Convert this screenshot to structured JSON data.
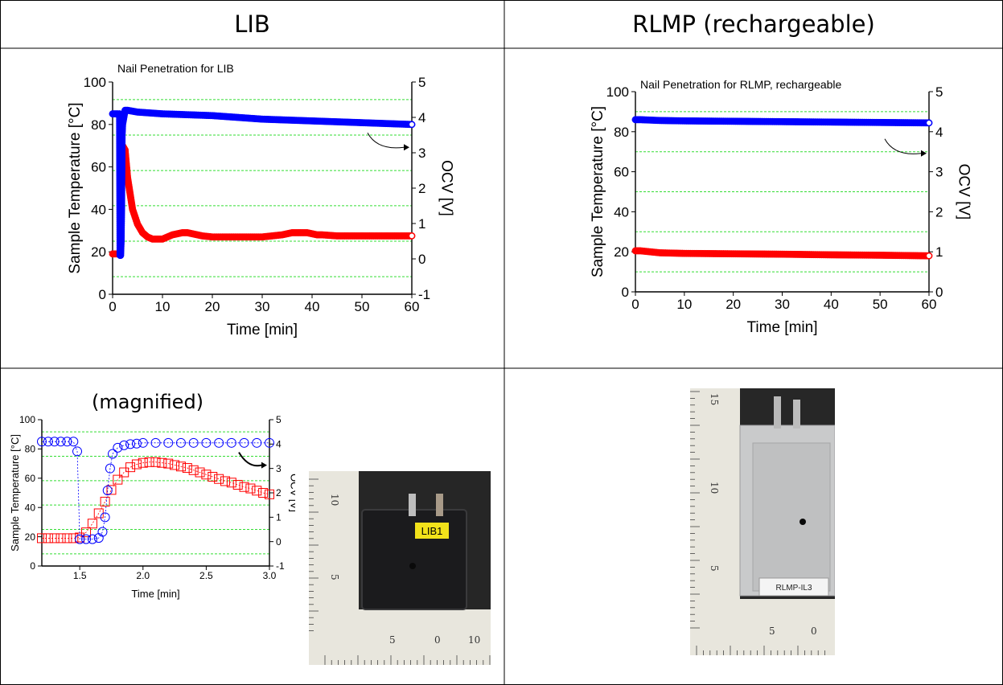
{
  "table": {
    "headers": [
      "LIB",
      "RLMP (rechargeable)"
    ],
    "magnified_label": "(magnified)"
  },
  "colors": {
    "temperature": "#ff0000",
    "ocv": "#0000ff",
    "grid": "#33dd33",
    "table_border": "#000000"
  },
  "chart_data": [
    {
      "type": "scatter",
      "title": "Nail Penetration for LIB",
      "xlabel": "Time [min]",
      "ylabel": "Sample Temperature [°C]",
      "y2label": "OCV [V]",
      "xlim": [
        0,
        60
      ],
      "ylim": [
        0,
        100
      ],
      "y2lim": [
        -1,
        5
      ],
      "xticks": [
        0,
        10,
        20,
        30,
        40,
        50,
        60
      ],
      "yticks": [
        0,
        20,
        40,
        60,
        80,
        100
      ],
      "y2ticks": [
        -1,
        0,
        1,
        2,
        3,
        4,
        5
      ],
      "gridlines_y": [
        8.3,
        25,
        41.7,
        58.3,
        75,
        91.7
      ],
      "series": [
        {
          "axis": "left",
          "color": "#ff0000",
          "style": "thick",
          "x": [
            0,
            1.5,
            1.6,
            1.8,
            2.0,
            2.5,
            3,
            4,
            5,
            6,
            7,
            8,
            9,
            10,
            11,
            12,
            13,
            14,
            15,
            16,
            17,
            18,
            20,
            22,
            25,
            28,
            30,
            32,
            34,
            35,
            36,
            37,
            38,
            39,
            40,
            41,
            42,
            45,
            50,
            55,
            60
          ],
          "y": [
            19,
            19,
            22,
            50,
            70,
            68,
            55,
            40,
            33,
            29,
            27,
            26,
            26,
            26,
            27,
            28,
            28.5,
            29,
            29,
            28.5,
            28,
            27.5,
            27,
            27,
            27,
            27,
            27,
            27.5,
            28,
            28.5,
            29,
            29,
            29,
            29,
            28.5,
            28,
            28,
            27.5,
            27.5,
            27.5,
            27.5
          ]
        },
        {
          "axis": "right",
          "color": "#0000ff",
          "style": "thick",
          "x": [
            0,
            1.0,
            1.4,
            1.5,
            1.6,
            1.7,
            1.8,
            1.9,
            2.0,
            2.5,
            3,
            5,
            10,
            20,
            30,
            40,
            50,
            60
          ],
          "y": [
            4.1,
            4.1,
            4.1,
            0.1,
            0.1,
            0.5,
            1.5,
            3.5,
            3.8,
            4.2,
            4.2,
            4.15,
            4.1,
            4.05,
            3.95,
            3.9,
            3.85,
            3.8
          ]
        }
      ]
    },
    {
      "type": "scatter",
      "title": "Nail Penetration for RLMP, rechargeable",
      "xlabel": "Time [min]",
      "ylabel": "Sample Temperature [°C]",
      "y2label": "OCV [V]",
      "xlim": [
        0,
        60
      ],
      "ylim": [
        0,
        100
      ],
      "y2lim": [
        0,
        5
      ],
      "xticks": [
        0,
        10,
        20,
        30,
        40,
        50,
        60
      ],
      "yticks": [
        0,
        20,
        40,
        60,
        80,
        100
      ],
      "y2ticks": [
        0,
        1,
        2,
        3,
        4,
        5
      ],
      "gridlines_y": [
        10,
        30,
        50,
        70,
        90
      ],
      "series": [
        {
          "axis": "left",
          "color": "#ff0000",
          "style": "thick",
          "x": [
            0,
            1,
            3,
            5,
            10,
            20,
            30,
            40,
            50,
            60
          ],
          "y": [
            20.5,
            20.5,
            20,
            19.5,
            19.2,
            19,
            18.8,
            18.5,
            18.3,
            18
          ]
        },
        {
          "axis": "right",
          "color": "#0000ff",
          "style": "thick",
          "x": [
            0,
            1,
            5,
            10,
            20,
            30,
            40,
            50,
            60
          ],
          "y": [
            4.3,
            4.3,
            4.28,
            4.27,
            4.26,
            4.25,
            4.24,
            4.23,
            4.22
          ]
        }
      ]
    },
    {
      "type": "scatter",
      "title": "",
      "xlabel": "Time [min]",
      "ylabel": "Sample Temperature [°C]",
      "y2label": "OCV [V]",
      "xlim": [
        1.2,
        3.0
      ],
      "ylim": [
        0,
        100
      ],
      "y2lim": [
        -1,
        5
      ],
      "xticks": [
        1.5,
        2.0,
        2.5,
        3.0
      ],
      "xticklabels": [
        "1.5",
        "2.0",
        "2.5",
        "3.0"
      ],
      "yticks": [
        0,
        20,
        40,
        60,
        80,
        100
      ],
      "y2ticks": [
        -1,
        0,
        1,
        2,
        3,
        4,
        5
      ],
      "gridlines_y": [
        8.3,
        25,
        41.7,
        58.3,
        75,
        91.7
      ],
      "series": [
        {
          "axis": "left",
          "color": "#ff0000",
          "style": "open-square",
          "x": [
            1.2,
            1.25,
            1.3,
            1.35,
            1.4,
            1.45,
            1.5,
            1.55,
            1.6,
            1.65,
            1.7,
            1.75,
            1.8,
            1.85,
            1.9,
            1.95,
            2.0,
            2.05,
            2.1,
            2.15,
            2.2,
            2.25,
            2.3,
            2.35,
            2.4,
            2.45,
            2.5,
            2.55,
            2.6,
            2.65,
            2.7,
            2.75,
            2.8,
            2.85,
            2.9,
            2.95,
            3.0
          ],
          "y": [
            19,
            19,
            19,
            19,
            19,
            19,
            19.5,
            23,
            29,
            36,
            44,
            52,
            59,
            64,
            67.5,
            69.5,
            70.5,
            71,
            71,
            70.5,
            70,
            69,
            68,
            67,
            65.5,
            64,
            62.5,
            61,
            59.5,
            58,
            57,
            55.5,
            54,
            53,
            51.5,
            50,
            49
          ]
        },
        {
          "axis": "right",
          "color": "#0000ff",
          "style": "open-circle",
          "x": [
            1.2,
            1.25,
            1.3,
            1.35,
            1.4,
            1.45,
            1.48,
            1.5,
            1.55,
            1.6,
            1.65,
            1.68,
            1.7,
            1.72,
            1.74,
            1.76,
            1.8,
            1.85,
            1.9,
            1.95,
            2.0,
            2.1,
            2.2,
            2.3,
            2.4,
            2.5,
            2.6,
            2.7,
            2.8,
            2.9,
            3.0
          ],
          "y": [
            4.1,
            4.1,
            4.1,
            4.1,
            4.1,
            4.1,
            3.7,
            0.1,
            0.1,
            0.1,
            0.15,
            0.4,
            1.0,
            2.1,
            3.0,
            3.6,
            3.85,
            3.95,
            4.0,
            4.02,
            4.05,
            4.05,
            4.05,
            4.05,
            4.05,
            4.05,
            4.05,
            4.05,
            4.05,
            4.05,
            4.05
          ]
        }
      ]
    }
  ],
  "photos": {
    "lib_label": "LIB1",
    "rlmp_label": "RLMP-IL3",
    "lib_ruler_numbers": [
      "10",
      "5",
      "5",
      "0",
      "10"
    ],
    "rlmp_ruler_numbers": [
      "15",
      "10",
      "5",
      "5",
      "0"
    ]
  }
}
